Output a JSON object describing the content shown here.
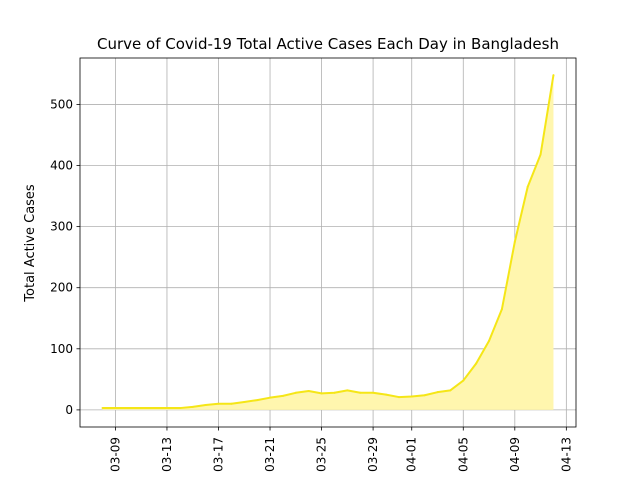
{
  "chart_data": {
    "type": "area",
    "title": "Curve of Covid-19 Total Active Cases Each Day in Bangladesh",
    "xlabel": "",
    "ylabel": "Total Active Cases",
    "x_tick_labels": [
      "03-09",
      "03-13",
      "03-17",
      "03-21",
      "03-25",
      "03-29",
      "04-01",
      "04-05",
      "04-09",
      "04-13"
    ],
    "y_ticks": [
      0,
      100,
      200,
      300,
      400,
      500
    ],
    "ylim": [
      -28,
      576
    ],
    "grid": true,
    "line_color": "#f5e617",
    "fill_color": "#fff6ae",
    "series": [
      {
        "x": [
          "03-08",
          "03-09",
          "03-10",
          "03-11",
          "03-12",
          "03-13",
          "03-14",
          "03-15",
          "03-16",
          "03-17",
          "03-18",
          "03-19",
          "03-20",
          "03-21",
          "03-22",
          "03-23",
          "03-24",
          "03-25",
          "03-26",
          "03-27",
          "03-28",
          "03-29",
          "03-30",
          "03-31",
          "04-01",
          "04-02",
          "04-03",
          "04-04",
          "04-05",
          "04-06",
          "04-07",
          "04-08",
          "04-09",
          "04-10",
          "04-11",
          "04-12"
        ],
        "values": [
          3,
          3,
          3,
          3,
          3,
          3,
          3,
          5,
          8,
          10,
          10,
          13,
          16,
          20,
          23,
          28,
          31,
          27,
          28,
          32,
          28,
          28,
          25,
          21,
          22,
          24,
          29,
          32,
          48,
          76,
          113,
          165,
          275,
          365,
          418,
          548
        ]
      }
    ]
  }
}
